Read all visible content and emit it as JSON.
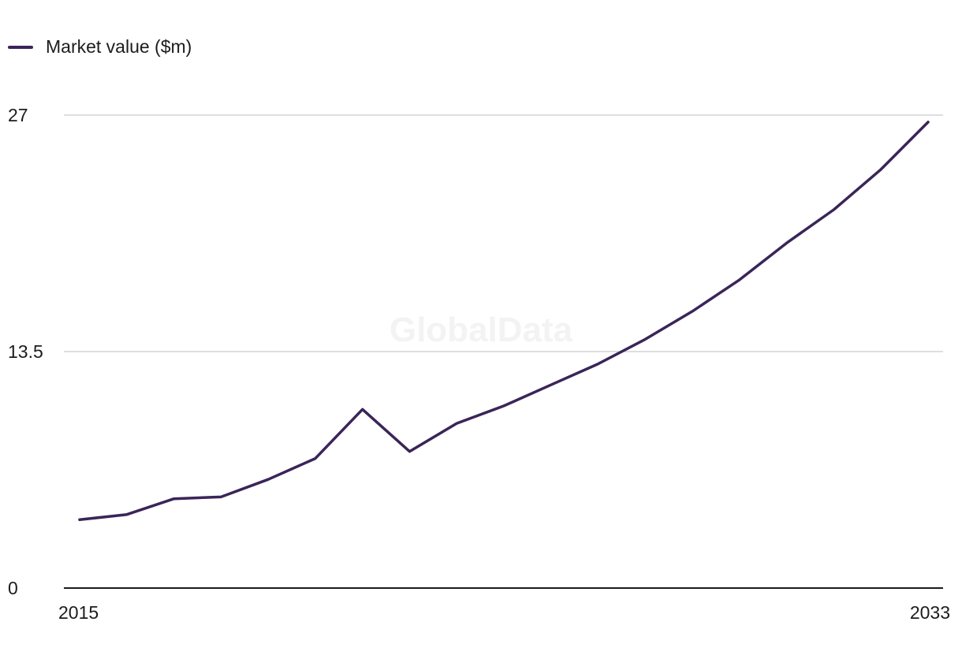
{
  "legend": {
    "label": "Market value ($m)"
  },
  "watermark": "GlobalData",
  "colors": {
    "series": "#3a2558",
    "grid": "#d4d4d4",
    "axis": "#1c1c1c"
  },
  "chart_data": {
    "type": "line",
    "title": "",
    "xlabel": "",
    "ylabel": "",
    "x": [
      2015,
      2016,
      2017,
      2018,
      2019,
      2020,
      2021,
      2022,
      2023,
      2024,
      2025,
      2026,
      2027,
      2028,
      2029,
      2030,
      2031,
      2032,
      2033
    ],
    "series": [
      {
        "name": "Market value ($m)",
        "values": [
          3.9,
          4.2,
          5.1,
          5.2,
          6.2,
          7.4,
          10.2,
          7.8,
          9.4,
          10.4,
          11.6,
          12.8,
          14.2,
          15.8,
          17.6,
          19.7,
          21.6,
          23.9,
          26.6
        ]
      }
    ],
    "ylim": [
      0,
      27
    ],
    "y_ticks": [
      "0",
      "13.5",
      "27"
    ],
    "x_tick_labels": [
      "2015",
      "2033"
    ],
    "grid": true,
    "legend_position": "top-left"
  }
}
